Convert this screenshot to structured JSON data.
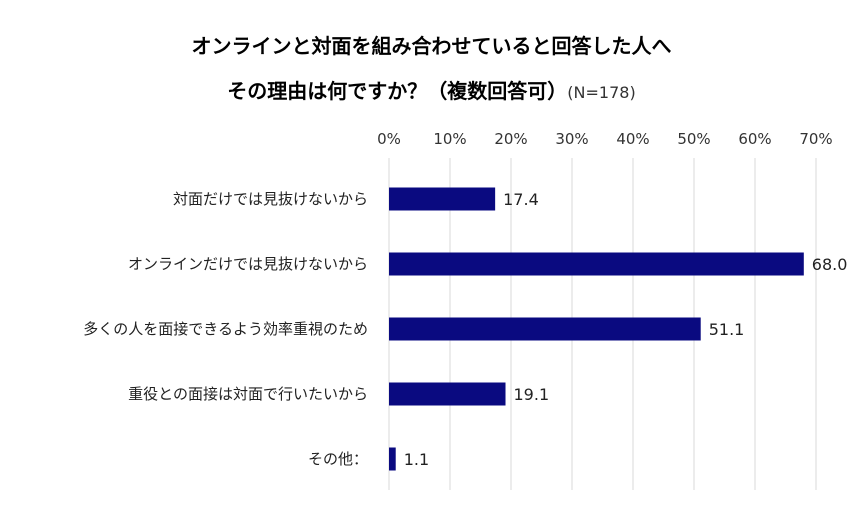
{
  "chart_data": {
    "type": "bar",
    "orientation": "horizontal",
    "title_line1": "オンラインと対面を組み合わせていると回答した人へ",
    "title_line2": "その理由は何ですか？（複数回答可）",
    "n_note": "(N=178)",
    "categories": [
      "対面だけでは見抜けないから",
      "オンラインだけでは見抜けないから",
      "多くの人を面接できるよう効率重視のため",
      "重役との面接は対面で行いたいから",
      "その他："
    ],
    "values": [
      17.4,
      68.0,
      51.1,
      19.1,
      1.1
    ],
    "value_labels": [
      "17.4",
      "68.0",
      "51.1",
      "19.1",
      "1.1"
    ],
    "xlim": [
      0,
      70
    ],
    "x_ticks": [
      "0%",
      "10%",
      "20%",
      "30%",
      "40%",
      "50%",
      "60%",
      "70%"
    ],
    "x_tick_values": [
      0,
      10,
      20,
      30,
      40,
      50,
      60,
      70
    ],
    "axis_position": "top",
    "grid": true,
    "legend": "none",
    "bar_color": "#0a0a80",
    "grid_color": "#d9d9d9"
  }
}
